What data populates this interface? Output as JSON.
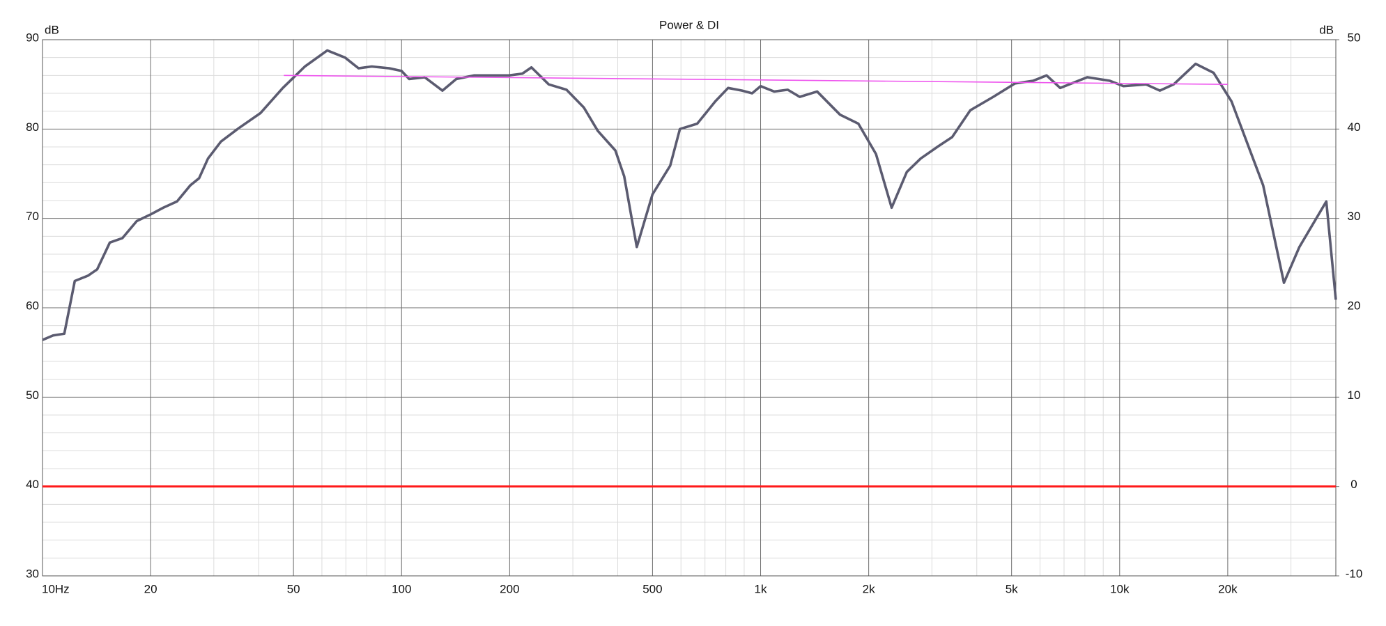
{
  "chart_data": {
    "type": "line",
    "title": "Power & DI",
    "ylabel": "dB",
    "y2label": "dB",
    "xscale": "log",
    "xlim": [
      10,
      40000
    ],
    "ylim": [
      30,
      90
    ],
    "y2lim": [
      -10,
      50
    ],
    "xticks": [
      {
        "value": 10,
        "label": "10Hz"
      },
      20,
      50,
      100,
      200,
      500,
      {
        "value": 1000,
        "label": "1k"
      },
      {
        "value": 2000,
        "label": "2k"
      },
      {
        "value": 5000,
        "label": "5k"
      },
      {
        "value": 10000,
        "label": "10k"
      },
      {
        "value": 20000,
        "label": "20k"
      }
    ],
    "yticks": [
      30,
      40,
      50,
      60,
      70,
      80,
      90
    ],
    "y2ticks": [
      -10,
      0,
      10,
      20,
      30,
      40,
      50
    ],
    "grid": true,
    "minor_grid": true,
    "series": [
      {
        "color": "#5b5b70",
        "x": [
          10,
          10.7,
          11.5,
          12.3,
          13.4,
          14.2,
          15.4,
          16.7,
          18.3,
          19.9,
          21.7,
          23.7,
          25.8,
          27.3,
          28.9,
          31.4,
          35.2,
          40.5,
          46.7,
          53.8,
          62.1,
          69.6,
          75.9,
          82.6,
          92.4,
          100,
          105,
          116,
          130,
          142,
          159,
          178,
          199,
          217,
          230,
          257,
          288,
          322,
          352,
          394,
          417,
          452,
          500,
          560,
          596,
          666,
          748,
          812,
          888,
          947,
          1000,
          1091,
          1190,
          1285,
          1437,
          1665,
          1872,
          2096,
          2317,
          2554,
          2791,
          3131,
          3416,
          3837,
          4446,
          5108,
          5737,
          6259,
          6829,
          8124,
          9390,
          10247,
          11840,
          12942,
          14138,
          16270,
          18259,
          20487,
          25100,
          28680,
          31660,
          37630,
          40000
        ],
        "values": [
          56.4,
          56.9,
          57.1,
          63.0,
          63.6,
          64.3,
          67.3,
          67.8,
          69.7,
          70.4,
          71.2,
          71.9,
          73.7,
          74.5,
          76.7,
          78.6,
          80.1,
          81.8,
          84.6,
          87.0,
          88.8,
          88.0,
          86.8,
          87.0,
          86.8,
          86.5,
          85.6,
          85.8,
          84.3,
          85.6,
          86.0,
          86.0,
          86.0,
          86.2,
          86.9,
          85.0,
          84.4,
          82.4,
          79.8,
          77.6,
          74.7,
          66.8,
          72.7,
          75.9,
          80.0,
          80.6,
          83.1,
          84.6,
          84.3,
          84.0,
          84.8,
          84.2,
          84.4,
          83.6,
          84.2,
          81.6,
          80.6,
          77.2,
          71.2,
          75.2,
          76.7,
          78.1,
          79.1,
          82.1,
          83.6,
          85.1,
          85.4,
          86.0,
          84.6,
          85.8,
          85.4,
          84.8,
          85.0,
          84.3,
          85.0,
          87.3,
          86.3,
          83.1,
          73.7,
          62.8,
          66.8,
          71.9,
          60.9
        ]
      },
      {
        "color": "#ee55ee",
        "x": [
          47,
          20000
        ],
        "values": [
          86.0,
          85.0
        ]
      },
      {
        "color": "#ff1a1a",
        "axis": "y2",
        "x": [
          10,
          40000
        ],
        "values": [
          0,
          0
        ]
      }
    ]
  }
}
